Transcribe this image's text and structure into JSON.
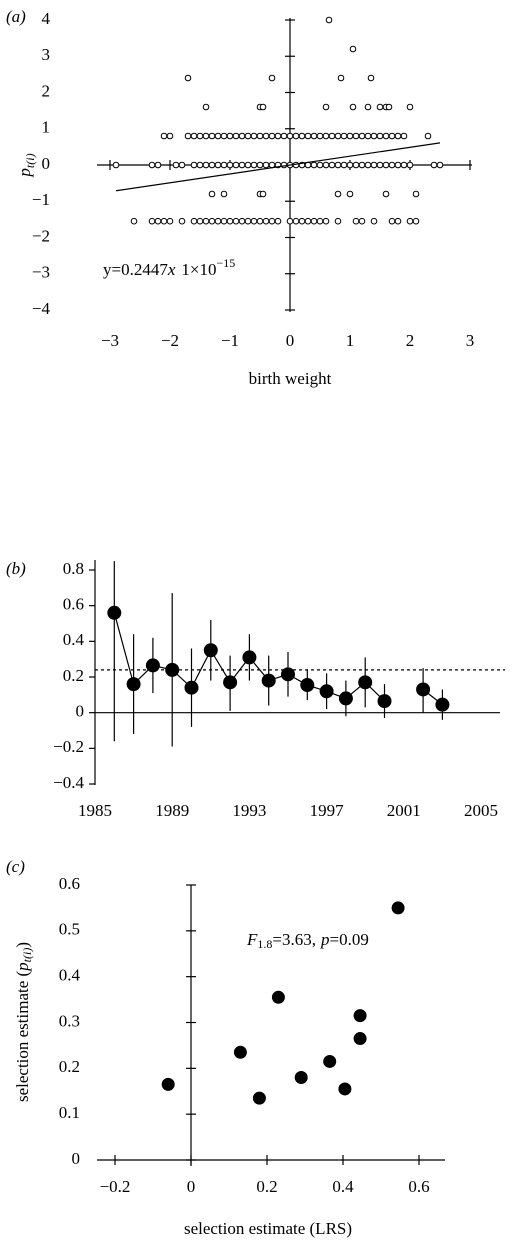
{
  "chart_data": [
    {
      "type": "scatter",
      "panel_label": "(a)",
      "marker": "open",
      "xlabel": "birth weight",
      "ylabel": {
        "symbol": "p",
        "subscript": "t(i)"
      },
      "annotation": {
        "text": "y=0.2447",
        "var": "x",
        "factor": "1×10",
        "exponent": "−15"
      },
      "xlim": [
        -3,
        3
      ],
      "ylim": [
        -4,
        4
      ],
      "xticks": [
        {
          "value": -3,
          "label": "−3"
        },
        {
          "value": -2,
          "label": "−2"
        },
        {
          "value": -1,
          "label": "−1"
        },
        0,
        1,
        2,
        3
      ],
      "yticks": [
        {
          "value": -4,
          "label": "−4"
        },
        {
          "value": -3,
          "label": "−3"
        },
        {
          "value": -2,
          "label": "−2"
        },
        {
          "value": -1,
          "label": "−1"
        },
        0,
        1,
        2,
        3,
        4
      ],
      "x": [
        0.65,
        1.05,
        -1.7,
        -0.3,
        0.85,
        1.35,
        -1.4,
        -0.5,
        -0.45,
        0.6,
        1.05,
        1.3,
        1.5,
        1.6,
        1.65,
        2.0,
        -2.1,
        -2.0,
        -1.7,
        -1.6,
        -1.5,
        -1.4,
        -1.3,
        -1.2,
        -1.1,
        -1.0,
        -0.9,
        -0.8,
        -0.7,
        -0.6,
        -0.5,
        -0.4,
        -0.3,
        -0.2,
        -0.1,
        0,
        0.1,
        0.2,
        0.3,
        0.4,
        0.5,
        0.6,
        0.7,
        0.8,
        0.9,
        1.0,
        1.1,
        1.2,
        1.3,
        1.4,
        1.5,
        1.6,
        1.7,
        1.8,
        1.9,
        2.3,
        -2.9,
        -2.3,
        -2.2,
        -1.9,
        -1.8,
        -1.6,
        -1.5,
        -1.4,
        -1.3,
        -1.2,
        -1.1,
        -1.0,
        -0.9,
        -0.8,
        -0.7,
        -0.6,
        -0.5,
        -0.4,
        -0.3,
        -0.2,
        -0.1,
        0,
        0.1,
        0.2,
        0.3,
        0.4,
        0.5,
        0.6,
        0.7,
        0.8,
        0.9,
        1.0,
        1.1,
        1.2,
        1.3,
        1.4,
        1.5,
        1.6,
        1.7,
        1.8,
        1.9,
        2.0,
        2.4,
        2.5,
        -1.3,
        -1.1,
        -0.5,
        -0.45,
        0.8,
        1.0,
        1.6,
        2.1,
        -2.6,
        -2.3,
        -2.2,
        -2.1,
        -2.0,
        -1.8,
        -1.6,
        -1.5,
        -1.4,
        -1.3,
        -1.2,
        -1.1,
        -1.0,
        -0.9,
        -0.8,
        -0.7,
        -0.6,
        -0.5,
        -0.4,
        -0.3,
        -0.2,
        0,
        0.1,
        0.2,
        0.3,
        0.4,
        0.5,
        0.6,
        0.8,
        1.1,
        1.2,
        1.4,
        1.7,
        1.8,
        2.0,
        2.1
      ],
      "y": [
        4,
        3.2,
        2.4,
        2.4,
        2.4,
        2.4,
        1.6,
        1.6,
        1.6,
        1.6,
        1.6,
        1.6,
        1.6,
        1.6,
        1.6,
        1.6,
        0.8,
        0.8,
        0.8,
        0.8,
        0.8,
        0.8,
        0.8,
        0.8,
        0.8,
        0.8,
        0.8,
        0.8,
        0.8,
        0.8,
        0.8,
        0.8,
        0.8,
        0.8,
        0.8,
        0.8,
        0.8,
        0.8,
        0.8,
        0.8,
        0.8,
        0.8,
        0.8,
        0.8,
        0.8,
        0.8,
        0.8,
        0.8,
        0.8,
        0.8,
        0.8,
        0.8,
        0.8,
        0.8,
        0.8,
        0.8,
        0,
        0,
        0,
        0,
        0,
        0,
        0,
        0,
        0,
        0,
        0,
        0,
        0,
        0,
        0,
        0,
        0,
        0,
        0,
        0,
        0,
        0,
        0,
        0,
        0,
        0,
        0,
        0,
        0,
        0,
        0,
        0,
        0,
        0,
        0,
        0,
        0,
        0,
        0,
        0,
        0,
        0,
        0,
        0,
        -0.8,
        -0.8,
        -0.8,
        -0.8,
        -0.8,
        -0.8,
        -0.8,
        -0.8,
        -1.55,
        -1.55,
        -1.55,
        -1.55,
        -1.55,
        -1.55,
        -1.55,
        -1.55,
        -1.55,
        -1.55,
        -1.55,
        -1.55,
        -1.55,
        -1.55,
        -1.55,
        -1.55,
        -1.55,
        -1.55,
        -1.55,
        -1.55,
        -1.55,
        -1.55,
        -1.55,
        -1.55,
        -1.55,
        -1.55,
        -1.55,
        -1.55,
        -1.55,
        -1.55,
        -1.55,
        -1.55,
        -1.55,
        -1.55,
        -1.55,
        -1.55
      ],
      "fit_line": {
        "x": [
          -2.9,
          2.5
        ],
        "y": [
          -0.71,
          0.61
        ]
      }
    },
    {
      "type": "line_errorbar",
      "panel_label": "(b)",
      "xlim": [
        1985,
        2005
      ],
      "xticks": [
        1985,
        1989,
        1993,
        1997,
        2001,
        2005
      ],
      "ylim": [
        -0.4,
        0.8
      ],
      "yticks": [
        {
          "value": -0.4,
          "label": "−0.4"
        },
        {
          "value": -0.2,
          "label": "−0.2"
        },
        0,
        0.2,
        0.4,
        0.6,
        0.8
      ],
      "x": [
        1986,
        1987,
        1988,
        1989,
        1990,
        1991,
        1992,
        1993,
        1994,
        1995,
        1996,
        1997,
        1998,
        1999,
        2000,
        2001,
        2002,
        2003
      ],
      "values": [
        0.56,
        0.16,
        0.265,
        0.24,
        0.14,
        0.35,
        0.17,
        0.31,
        0.18,
        0.215,
        0.155,
        0.12,
        0.08,
        0.17,
        0.065,
        null,
        0.13,
        0.045
      ],
      "lower": [
        -0.16,
        -0.12,
        0.11,
        -0.19,
        -0.08,
        0.18,
        0.01,
        0.18,
        0.04,
        0.09,
        0.07,
        0.02,
        -0.02,
        0.03,
        -0.03,
        null,
        0,
        -0.04
      ],
      "upper": [
        0.85,
        0.44,
        0.42,
        0.67,
        0.36,
        0.52,
        0.32,
        0.44,
        0.32,
        0.34,
        0.24,
        0.22,
        0.18,
        0.31,
        0.16,
        null,
        0.25,
        0.13
      ],
      "reference_line": 0.24
    },
    {
      "type": "scatter",
      "panel_label": "(c)",
      "marker": "filled",
      "xlabel": "selection estimate (LRS)",
      "ylabel": {
        "text": "selection estimate (",
        "symbol": "p",
        "subscript": "t(i)",
        "close": ")"
      },
      "annotation": {
        "stat": "F",
        "df": "1.8",
        "stat_value": "=3.63,",
        "p": "p",
        "p_value": "=0.09"
      },
      "xlim": [
        -0.2,
        0.6
      ],
      "ylim": [
        0,
        0.6
      ],
      "xticks": [
        {
          "value": -0.2,
          "label": "−0.2"
        },
        0,
        0.2,
        0.4,
        0.6
      ],
      "yticks": [
        0,
        0.1,
        0.2,
        0.3,
        0.4,
        0.5,
        0.6
      ],
      "x": [
        -0.06,
        0.13,
        0.18,
        0.23,
        0.29,
        0.365,
        0.405,
        0.445,
        0.445,
        0.545
      ],
      "y": [
        0.165,
        0.235,
        0.135,
        0.355,
        0.18,
        0.215,
        0.155,
        0.315,
        0.265,
        0.55
      ]
    }
  ]
}
